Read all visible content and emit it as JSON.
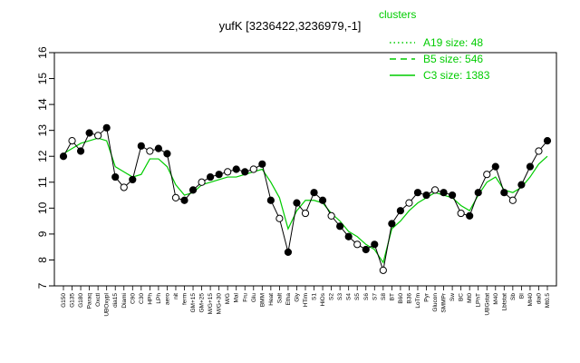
{
  "chart_data": {
    "type": "line",
    "title": "yufK [3236422,3236979,-1]",
    "xlabel": "",
    "ylabel": "",
    "ylim": [
      7,
      16
    ],
    "yticks": [
      7,
      8,
      9,
      10,
      11,
      12,
      13,
      14,
      15,
      16
    ],
    "grid": false,
    "legend": {
      "placement": "top-right",
      "title": "clusters",
      "entries": [
        {
          "label": "A19 size: 48",
          "style": "dotted",
          "color": "#00cc00"
        },
        {
          "label": "B5 size: 546",
          "style": "dashed",
          "color": "#00cc00"
        },
        {
          "label": "C3 size: 1383",
          "style": "solid",
          "color": "#00cc00"
        }
      ]
    },
    "x_tick_labels": [
      "G150",
      "G135",
      "G180",
      "Paraq",
      "Oxctl",
      "UBOxypl",
      "dia15",
      "Diami",
      "C90",
      "C30",
      "HPh",
      "LPh",
      "aero",
      "nit",
      "ferm",
      "GM+15",
      "GM+25",
      "M/G+15",
      "M/G+30",
      "M/G",
      "Mal",
      "Fru",
      "Glu",
      "BMM",
      "Heat",
      "Salt",
      "Etha",
      "Gly",
      "HTim",
      "S1",
      "HiOs",
      "S2",
      "S3",
      "S4",
      "S5",
      "S6",
      "S7",
      "S8",
      "BT",
      "B60",
      "B36",
      "LoTm",
      "Pyr",
      "Glucon",
      "SMMPr",
      "Sw",
      "BC",
      "Mt0",
      "LPhT",
      "UBGstat",
      "M40",
      "Lbtstat",
      "Sb",
      "BI",
      "Mt40",
      "dia0",
      "Mt0.5"
    ],
    "series": [
      {
        "name": "",
        "role": "cluster mean line",
        "color": "#00cc00",
        "values": [
          12.1,
          12.3,
          12.5,
          12.6,
          12.7,
          12.6,
          11.6,
          11.4,
          11.2,
          11.3,
          11.9,
          11.9,
          11.6,
          10.9,
          10.5,
          10.6,
          10.9,
          11.0,
          11.1,
          11.2,
          11.2,
          11.3,
          11.4,
          11.5,
          11.0,
          10.4,
          9.2,
          9.9,
          10.3,
          10.3,
          10.2,
          9.8,
          9.5,
          9.1,
          8.9,
          8.6,
          8.4,
          7.9,
          9.2,
          9.5,
          9.9,
          10.2,
          10.4,
          10.6,
          10.5,
          10.4,
          10.1,
          9.9,
          10.5,
          11.0,
          11.2,
          10.7,
          10.6,
          10.8,
          11.2,
          11.7,
          12.0
        ]
      },
      {
        "name": "",
        "role": "gene expression",
        "color": "#000000",
        "values": [
          12.0,
          12.6,
          12.2,
          12.9,
          12.8,
          13.1,
          11.2,
          10.8,
          11.1,
          12.4,
          12.2,
          12.3,
          12.1,
          10.4,
          10.3,
          10.7,
          11.0,
          11.2,
          11.3,
          11.4,
          11.5,
          11.4,
          11.5,
          11.7,
          10.3,
          9.6,
          8.3,
          10.2,
          9.8,
          10.6,
          10.3,
          9.7,
          9.3,
          8.9,
          8.6,
          8.4,
          8.6,
          7.6,
          9.4,
          9.9,
          10.2,
          10.6,
          10.5,
          10.7,
          10.6,
          10.5,
          9.8,
          9.7,
          10.6,
          11.3,
          11.6,
          10.6,
          10.3,
          10.9,
          11.6,
          12.2,
          12.6
        ]
      }
    ]
  }
}
